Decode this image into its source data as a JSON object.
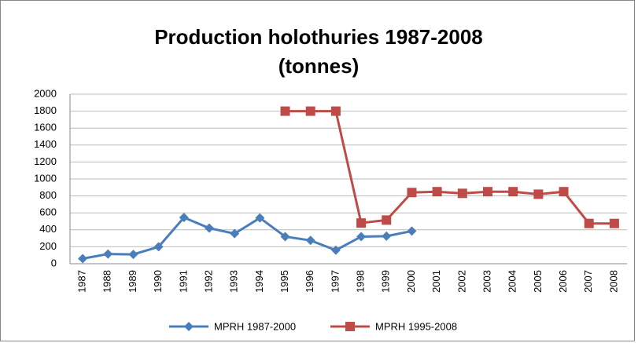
{
  "chart_data": {
    "type": "line",
    "title": [
      "Production holothuries 1987-2008",
      "(tonnes)"
    ],
    "categories": [
      "1987",
      "1988",
      "1989",
      "1990",
      "1991",
      "1992",
      "1993",
      "1994",
      "1995",
      "1996",
      "1997",
      "1998",
      "1999",
      "2000",
      "2001",
      "2002",
      "2003",
      "2004",
      "2005",
      "2006",
      "2007",
      "2008"
    ],
    "series": [
      {
        "name": "MPRH 1987-2000",
        "color": "#4a7ebb",
        "marker": "diamond",
        "values": [
          60,
          115,
          110,
          200,
          545,
          420,
          355,
          540,
          320,
          275,
          160,
          320,
          325,
          385,
          null,
          null,
          null,
          null,
          null,
          null,
          null,
          null
        ]
      },
      {
        "name": "MPRH 1995-2008",
        "color": "#be4b48",
        "marker": "square",
        "values": [
          null,
          null,
          null,
          null,
          null,
          null,
          null,
          null,
          1800,
          1800,
          1800,
          480,
          515,
          840,
          850,
          830,
          850,
          850,
          820,
          850,
          475,
          475
        ]
      }
    ],
    "ylim": [
      0,
      2000
    ],
    "yticks": [
      0,
      200,
      400,
      600,
      800,
      1000,
      1200,
      1400,
      1600,
      1800,
      2000
    ],
    "grid": true,
    "legend": "bottom"
  }
}
